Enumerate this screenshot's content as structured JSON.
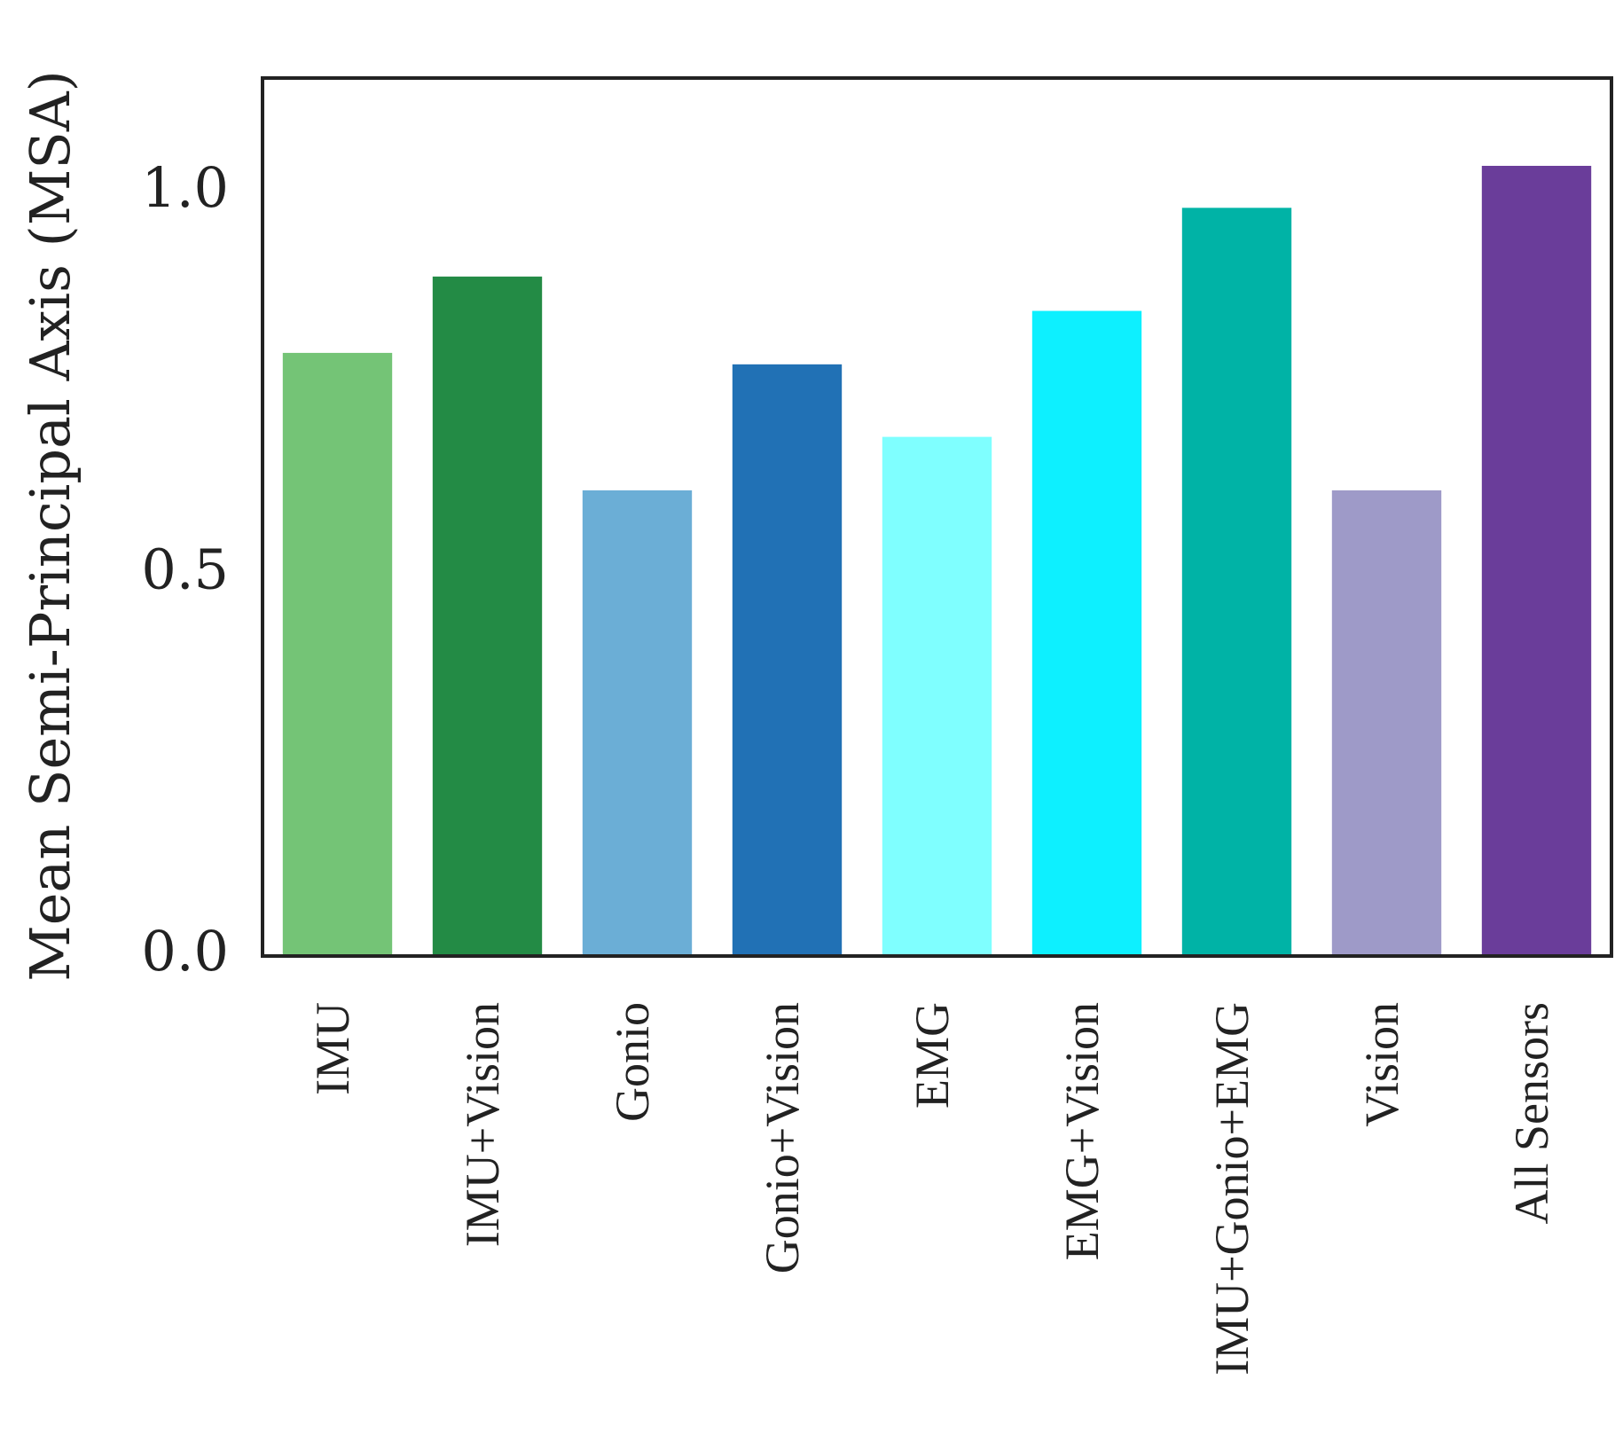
{
  "chart_data": {
    "type": "bar",
    "title": "",
    "xlabel": "",
    "ylabel": "Mean Semi-Principal Axis (MSA)",
    "ylim": [
      0,
      1.15
    ],
    "yticks": [
      "0.0",
      "0.5",
      "1.0"
    ],
    "ytick_values": [
      0.0,
      0.5,
      1.0
    ],
    "grid": false,
    "categories": [
      "IMU",
      "IMU+Vision",
      "Gonio",
      "Gonio+Vision",
      "EMG",
      "EMG+Vision",
      "IMU+Gonio+EMG",
      "Vision",
      "All Sensors"
    ],
    "values": [
      0.79,
      0.89,
      0.61,
      0.775,
      0.68,
      0.845,
      0.98,
      0.61,
      1.035
    ],
    "colors": [
      "#74c476",
      "#238b45",
      "#6baed6",
      "#2171b5",
      "#7fffff",
      "#0df0ff",
      "#00b3a6",
      "#9e9ac8",
      "#6a3d9a"
    ]
  }
}
